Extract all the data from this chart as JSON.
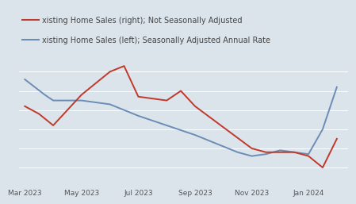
{
  "title_line1": "xisting Home Sales (right); Not Seasonally Adjusted",
  "title_line2": "xisting Home Sales (left); Seasonally Adjusted Annual Rate",
  "background_color": "#dce4eb",
  "plot_background": "#dce4eb",
  "x_labels": [
    "Mar 2023",
    "May 2023",
    "Jul 2023",
    "Sep 2023",
    "Nov 2023",
    "Jan 2024"
  ],
  "x_tick_pos": [
    0,
    2,
    4,
    6,
    8,
    10
  ],
  "blue_line": {
    "color": "#6b8db5",
    "x": [
      0,
      0.7,
      1,
      2,
      2.5,
      3,
      4,
      5,
      6,
      7,
      7.5,
      8,
      8.5,
      9,
      9.5,
      10,
      10.5,
      11
    ],
    "y": [
      76,
      68,
      65,
      65,
      64,
      63,
      57,
      52,
      47,
      41,
      38,
      36,
      37,
      39,
      38,
      37,
      50,
      72
    ]
  },
  "red_line": {
    "color": "#c0392b",
    "x": [
      0,
      0.5,
      1,
      2,
      3,
      3.5,
      4,
      5,
      5.5,
      6,
      7,
      8,
      8.5,
      9,
      9.5,
      10,
      10.5,
      11
    ],
    "y": [
      62,
      58,
      52,
      68,
      80,
      83,
      67,
      65,
      70,
      62,
      51,
      40,
      38,
      38,
      38,
      36,
      30,
      45
    ]
  }
}
